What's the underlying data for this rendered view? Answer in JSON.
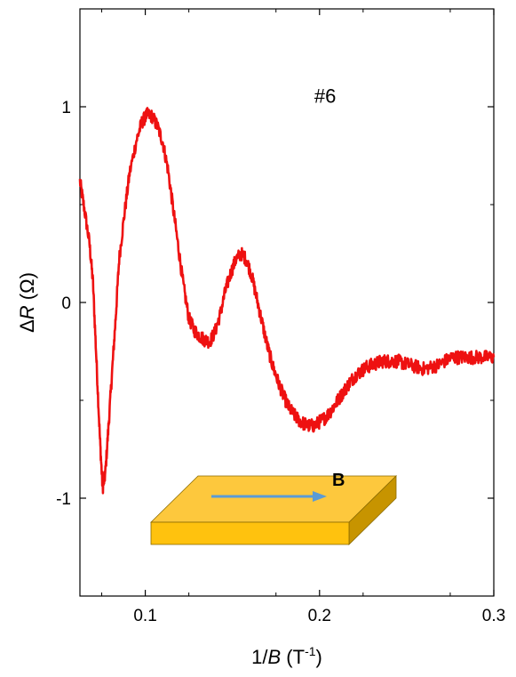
{
  "chart_data": {
    "type": "line",
    "title": "",
    "xlabel_prefix": "1/",
    "xlabel_var": "B",
    "xlabel_unit_open": " (T",
    "xlabel_unit_exp": "-1",
    "xlabel_unit_close": ")",
    "ylabel_delta": "Δ",
    "ylabel_var": "R",
    "ylabel_unit": " (Ω)",
    "xlim": [
      0.0625,
      0.3
    ],
    "ylim": [
      -1.5,
      1.5
    ],
    "x_ticks": [
      0.1,
      0.2,
      0.3
    ],
    "x_tick_labels": [
      "0.1",
      "0.2",
      "0.3"
    ],
    "y_ticks": [
      -1,
      0,
      1
    ],
    "y_tick_labels": [
      "-1",
      "0",
      "1"
    ],
    "grid": false,
    "line_color": "#ee1111",
    "annotation": "#6",
    "inset_label": "B",
    "inset_colors": {
      "top": "#fdc83d",
      "front": "#ffc20e",
      "side": "#c79400",
      "edge": "#8a6a00",
      "arrow": "#5b9bd5"
    },
    "series": [
      {
        "x": [
          0.0625,
          0.065,
          0.068,
          0.07,
          0.072,
          0.074,
          0.0755,
          0.077,
          0.079,
          0.081,
          0.083,
          0.085,
          0.088,
          0.091,
          0.095,
          0.098,
          0.101,
          0.104,
          0.107,
          0.11,
          0.113,
          0.116,
          0.119,
          0.122,
          0.125,
          0.128,
          0.131,
          0.134,
          0.137,
          0.14,
          0.143,
          0.146,
          0.149,
          0.152,
          0.155,
          0.158,
          0.161,
          0.164,
          0.167,
          0.17,
          0.173,
          0.176,
          0.179,
          0.182,
          0.185,
          0.188,
          0.191,
          0.194,
          0.197,
          0.2,
          0.203,
          0.206,
          0.209,
          0.212,
          0.215,
          0.218,
          0.221,
          0.224,
          0.227,
          0.23,
          0.233,
          0.236,
          0.239,
          0.242,
          0.245,
          0.248,
          0.252,
          0.256,
          0.26,
          0.264,
          0.268,
          0.272,
          0.276,
          0.28,
          0.284,
          0.288,
          0.292,
          0.296,
          0.3
        ],
        "y": [
          0.62,
          0.48,
          0.3,
          0.1,
          -0.3,
          -0.7,
          -0.95,
          -0.88,
          -0.62,
          -0.35,
          -0.08,
          0.22,
          0.45,
          0.66,
          0.83,
          0.92,
          0.96,
          0.95,
          0.9,
          0.82,
          0.68,
          0.48,
          0.28,
          0.08,
          -0.08,
          -0.14,
          -0.17,
          -0.19,
          -0.2,
          -0.15,
          -0.06,
          0.06,
          0.15,
          0.22,
          0.25,
          0.22,
          0.14,
          0.02,
          -0.1,
          -0.22,
          -0.32,
          -0.4,
          -0.47,
          -0.53,
          -0.57,
          -0.6,
          -0.62,
          -0.63,
          -0.63,
          -0.61,
          -0.59,
          -0.56,
          -0.52,
          -0.48,
          -0.44,
          -0.4,
          -0.37,
          -0.35,
          -0.33,
          -0.32,
          -0.31,
          -0.3,
          -0.3,
          -0.3,
          -0.3,
          -0.31,
          -0.32,
          -0.33,
          -0.34,
          -0.33,
          -0.32,
          -0.3,
          -0.28,
          -0.28,
          -0.28,
          -0.28,
          -0.28,
          -0.28,
          -0.28
        ]
      }
    ]
  }
}
